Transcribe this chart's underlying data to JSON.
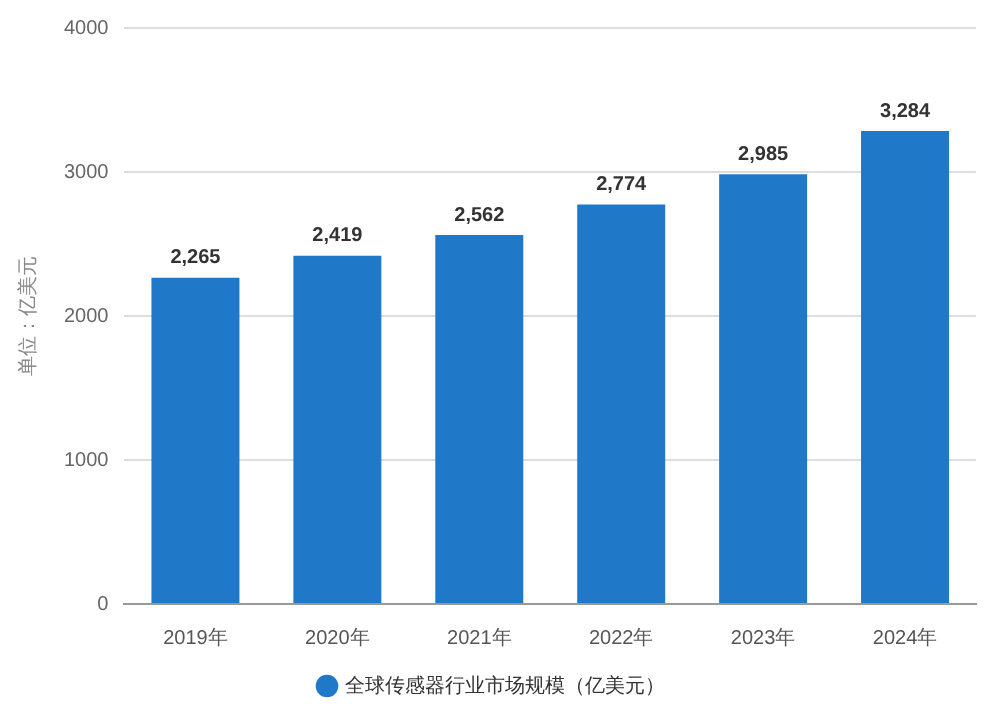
{
  "chart_data": {
    "type": "bar",
    "ylabel": "单位：亿美元",
    "categories": [
      "2019年",
      "2020年",
      "2021年",
      "2022年",
      "2023年",
      "2024年"
    ],
    "series": [
      {
        "name": "全球传感器行业市场规模（亿美元）",
        "color": "#1f78c8",
        "values": [
          2265,
          2419,
          2562,
          2774,
          2985,
          3284
        ],
        "value_labels": [
          "2,265",
          "2,419",
          "2,562",
          "2,774",
          "2,985",
          "3,284"
        ]
      }
    ],
    "ylim": [
      0,
      4000
    ],
    "yticks": [
      0,
      1000,
      2000,
      3000,
      4000
    ],
    "grid": "y",
    "legend": "bottom"
  }
}
